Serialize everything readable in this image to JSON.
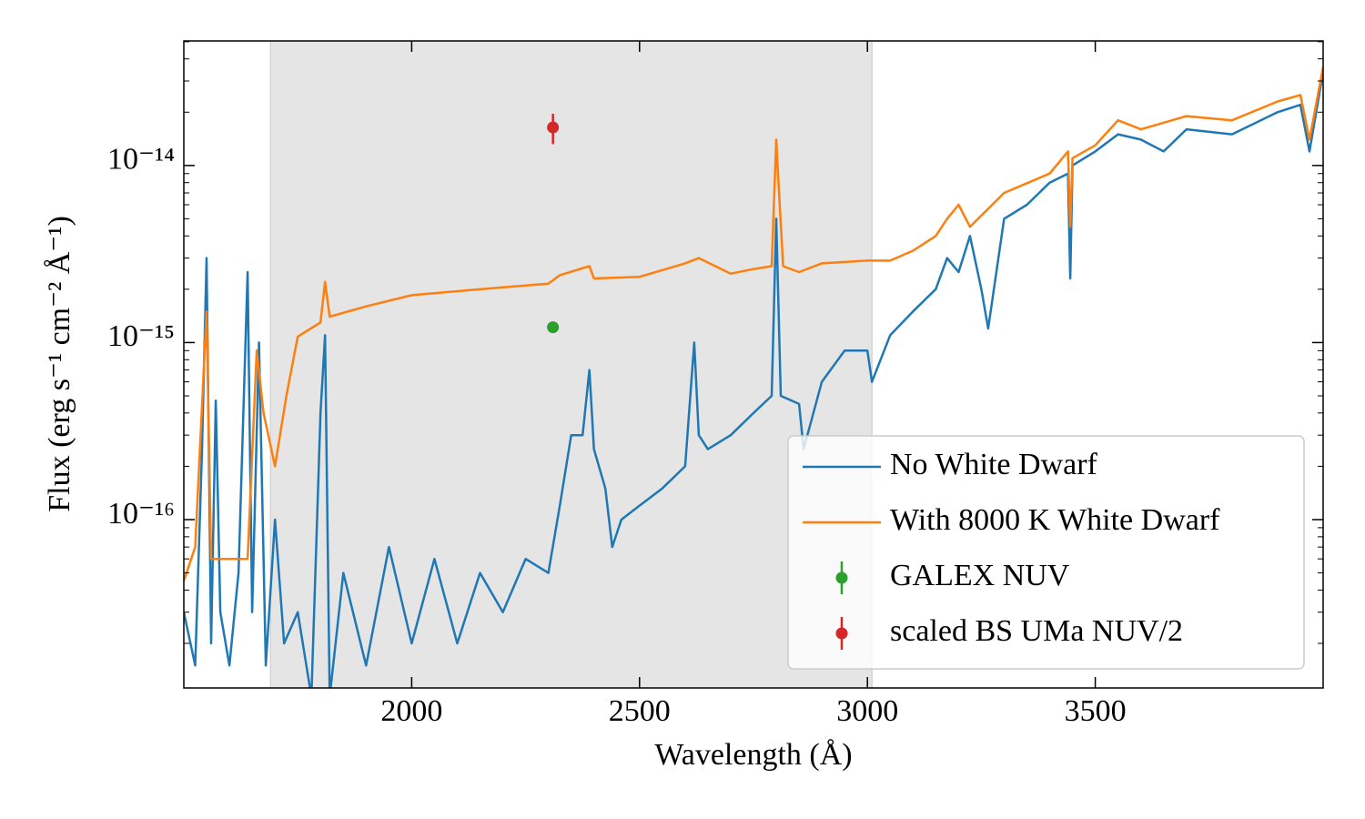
{
  "chart_data": {
    "type": "line",
    "xlabel": "Wavelength (Å)",
    "ylabel": "Flux (erg s⁻¹ cm⁻² Å⁻¹)",
    "xlim": [
      1500,
      4000
    ],
    "xticks": [
      2000,
      2500,
      3000,
      3500
    ],
    "ylim": [
      1.12e-17,
      5.05e-14
    ],
    "yscale": "log",
    "yticks": [
      {
        "value": 1e-16,
        "label": "10⁻¹⁶"
      },
      {
        "value": 1e-15,
        "label": "10⁻¹⁵"
      },
      {
        "value": 1e-14,
        "label": "10⁻¹⁴"
      }
    ],
    "shaded_span": [
      1690,
      3010
    ],
    "legend": "lower right",
    "series": [
      {
        "name": "No White Dwarf",
        "color": "#1f77b4",
        "style": "line",
        "x": [
          1500,
          1525,
          1540,
          1550,
          1560,
          1570,
          1580,
          1600,
          1620,
          1640,
          1650,
          1665,
          1680,
          1700,
          1720,
          1750,
          1780,
          1800,
          1810,
          1820,
          1850,
          1900,
          1950,
          2000,
          2050,
          2100,
          2150,
          2200,
          2250,
          2300,
          2325,
          2350,
          2375,
          2390,
          2400,
          2425,
          2440,
          2460,
          2500,
          2550,
          2600,
          2620,
          2630,
          2650,
          2700,
          2750,
          2790,
          2800,
          2810,
          2850,
          2860,
          2900,
          2950,
          3000,
          3010,
          3050,
          3100,
          3150,
          3175,
          3200,
          3225,
          3250,
          3265,
          3300,
          3350,
          3400,
          3440,
          3445,
          3450,
          3500,
          3550,
          3600,
          3650,
          3700,
          3800,
          3900,
          3950,
          3970,
          4000
        ],
        "values": [
          3e-17,
          1.5e-17,
          2.5e-16,
          3e-15,
          2e-17,
          4.7e-16,
          3e-17,
          1.5e-17,
          5e-17,
          2.5e-15,
          3e-17,
          1e-15,
          1.5e-17,
          1e-16,
          2e-17,
          3e-17,
          1e-17,
          4e-16,
          1.1e-15,
          1e-17,
          5e-17,
          1.5e-17,
          7e-17,
          2e-17,
          6e-17,
          2e-17,
          5e-17,
          3e-17,
          6e-17,
          5e-17,
          1.2e-16,
          3e-16,
          3e-16,
          7e-16,
          2.5e-16,
          1.5e-16,
          7e-17,
          1e-16,
          1.2e-16,
          1.5e-16,
          2e-16,
          1e-15,
          3e-16,
          2.5e-16,
          3e-16,
          4e-16,
          5e-16,
          5e-15,
          5e-16,
          4.5e-16,
          2.5e-16,
          6e-16,
          9e-16,
          9e-16,
          6e-16,
          1.1e-15,
          1.5e-15,
          2e-15,
          3e-15,
          2.5e-15,
          4e-15,
          2e-15,
          1.2e-15,
          5e-15,
          6e-15,
          8e-15,
          9e-15,
          2.3e-15,
          1e-14,
          1.2e-14,
          1.5e-14,
          1.4e-14,
          1.2e-14,
          1.6e-14,
          1.5e-14,
          2e-14,
          2.2e-14,
          1.2e-14,
          3.4e-14
        ]
      },
      {
        "name": "With 8000 K White Dwarf",
        "color": "#ff7f0e",
        "style": "line",
        "x": [
          1500,
          1525,
          1550,
          1560,
          1600,
          1625,
          1640,
          1660,
          1675,
          1700,
          1725,
          1750,
          1800,
          1810,
          1820,
          1900,
          2000,
          2100,
          2200,
          2300,
          2325,
          2390,
          2400,
          2500,
          2600,
          2630,
          2700,
          2750,
          2790,
          2800,
          2805,
          2815,
          2850,
          2900,
          3000,
          3050,
          3100,
          3150,
          3175,
          3200,
          3225,
          3300,
          3400,
          3440,
          3445,
          3450,
          3500,
          3550,
          3600,
          3700,
          3800,
          3900,
          3950,
          3970,
          4000
        ],
        "values": [
          4.5e-17,
          7e-17,
          1.5e-15,
          6e-17,
          6e-17,
          6e-17,
          6e-17,
          9e-16,
          4e-16,
          2e-16,
          5e-16,
          1.08e-15,
          1.3e-15,
          2.2e-15,
          1.4e-15,
          1.6e-15,
          1.85e-15,
          1.95e-15,
          2.05e-15,
          2.15e-15,
          2.4e-15,
          2.7e-15,
          2.3e-15,
          2.35e-15,
          2.8e-15,
          3e-15,
          2.45e-15,
          2.6e-15,
          2.7e-15,
          1.4e-14,
          8e-15,
          2.7e-15,
          2.5e-15,
          2.8e-15,
          2.9e-15,
          2.9e-15,
          3.3e-15,
          4e-15,
          5e-15,
          6e-15,
          4.5e-15,
          7e-15,
          9e-15,
          1.2e-14,
          4.5e-15,
          1.1e-14,
          1.3e-14,
          1.8e-14,
          1.6e-14,
          1.9e-14,
          1.8e-14,
          2.3e-14,
          2.5e-14,
          1.4e-14,
          3.6e-14
        ]
      },
      {
        "name": "GALEX NUV",
        "color": "#2ca02c",
        "style": "errorbar",
        "x": [
          2310
        ],
        "values": [
          1.22e-15
        ],
        "errors": [
          6e-17
        ]
      },
      {
        "name": "scaled BS UMa NUV/2",
        "color": "#d62728",
        "style": "errorbar",
        "x": [
          2310
        ],
        "values": [
          1.64e-14
        ],
        "errors": [
          3.2e-15
        ]
      }
    ]
  }
}
